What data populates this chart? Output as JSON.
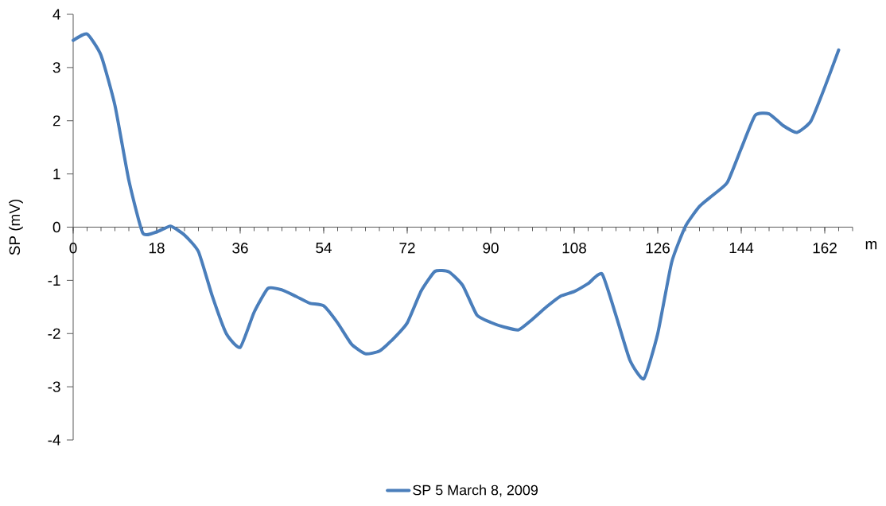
{
  "chart_data": {
    "type": "line",
    "xlabel": "m",
    "ylabel": "SP (mV)",
    "x": [
      0,
      3,
      6,
      9,
      12,
      15,
      18,
      21,
      24,
      27,
      30,
      33,
      36,
      39,
      42,
      45,
      48,
      51,
      54,
      57,
      60,
      63,
      66,
      69,
      72,
      75,
      78,
      81,
      84,
      87,
      90,
      93,
      96,
      99,
      102,
      105,
      108,
      111,
      114,
      117,
      120,
      123,
      126,
      129,
      132,
      135,
      138,
      141,
      144,
      147,
      150,
      153,
      156,
      159,
      162,
      165
    ],
    "series": [
      {
        "name": "SP 5 March 8, 2009",
        "color": "#4a7ebb",
        "values": [
          3.51,
          3.63,
          3.23,
          2.29,
          0.88,
          -0.11,
          -0.09,
          0.02,
          -0.15,
          -0.46,
          -1.3,
          -2.0,
          -2.26,
          -1.6,
          -1.15,
          -1.18,
          -1.3,
          -1.43,
          -1.48,
          -1.8,
          -2.2,
          -2.38,
          -2.33,
          -2.1,
          -1.8,
          -1.2,
          -0.83,
          -0.84,
          -1.1,
          -1.65,
          -1.79,
          -1.88,
          -1.93,
          -1.73,
          -1.5,
          -1.3,
          -1.21,
          -1.06,
          -0.88,
          -1.66,
          -2.5,
          -2.85,
          -2.0,
          -0.66,
          0.02,
          0.39,
          0.61,
          0.84,
          1.48,
          2.1,
          2.13,
          1.91,
          1.78,
          1.99,
          2.63,
          3.33
        ]
      }
    ],
    "xlim": [
      0,
      168
    ],
    "ylim": [
      -4,
      4
    ],
    "xticks": [
      0,
      18,
      36,
      54,
      72,
      90,
      108,
      126,
      144,
      162
    ],
    "yticks": [
      -4,
      -3,
      -2,
      -1,
      0,
      1,
      2,
      3,
      4
    ],
    "legend": "bottom"
  }
}
